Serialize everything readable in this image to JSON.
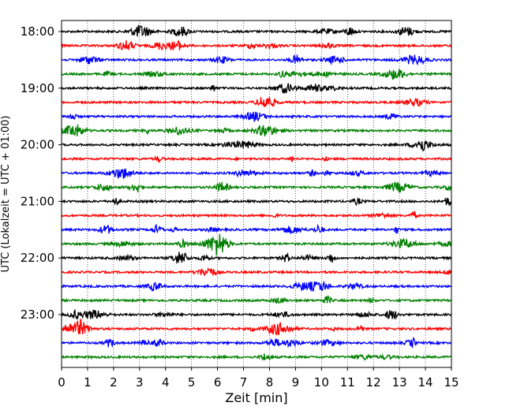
{
  "chart_data": {
    "type": "line",
    "title": "",
    "xlabel": "Zeit  [min]",
    "ylabel": "UTC (Lokalzeit = UTC + 01:00)",
    "xlim": [
      0,
      15
    ],
    "xticks": [
      "0",
      "1",
      "2",
      "3",
      "4",
      "5",
      "6",
      "7",
      "8",
      "9",
      "10",
      "11",
      "12",
      "13",
      "14",
      "15"
    ],
    "yticks": [
      "18:00",
      "19:00",
      "20:00",
      "21:00",
      "22:00",
      "23:00"
    ],
    "grid": "vertical dotted at each minute",
    "trace_interval_minutes": 15,
    "trace_colors": [
      "#000000",
      "#ff0000",
      "#0000ff",
      "#008000"
    ],
    "traces": [
      {
        "start": "18:00",
        "color": "#000000"
      },
      {
        "start": "18:15",
        "color": "#ff0000"
      },
      {
        "start": "18:30",
        "color": "#0000ff"
      },
      {
        "start": "18:45",
        "color": "#008000"
      },
      {
        "start": "19:00",
        "color": "#000000"
      },
      {
        "start": "19:15",
        "color": "#ff0000"
      },
      {
        "start": "19:30",
        "color": "#0000ff"
      },
      {
        "start": "19:45",
        "color": "#008000"
      },
      {
        "start": "20:00",
        "color": "#000000"
      },
      {
        "start": "20:15",
        "color": "#ff0000"
      },
      {
        "start": "20:30",
        "color": "#0000ff"
      },
      {
        "start": "20:45",
        "color": "#008000"
      },
      {
        "start": "21:00",
        "color": "#000000"
      },
      {
        "start": "21:15",
        "color": "#ff0000"
      },
      {
        "start": "21:30",
        "color": "#0000ff"
      },
      {
        "start": "21:45",
        "color": "#008000"
      },
      {
        "start": "22:00",
        "color": "#000000"
      },
      {
        "start": "22:15",
        "color": "#ff0000"
      },
      {
        "start": "22:30",
        "color": "#0000ff"
      },
      {
        "start": "22:45",
        "color": "#008000"
      },
      {
        "start": "23:00",
        "color": "#000000"
      },
      {
        "start": "23:15",
        "color": "#ff0000"
      },
      {
        "start": "23:30",
        "color": "#0000ff"
      },
      {
        "start": "23:45",
        "color": "#008000"
      }
    ]
  }
}
